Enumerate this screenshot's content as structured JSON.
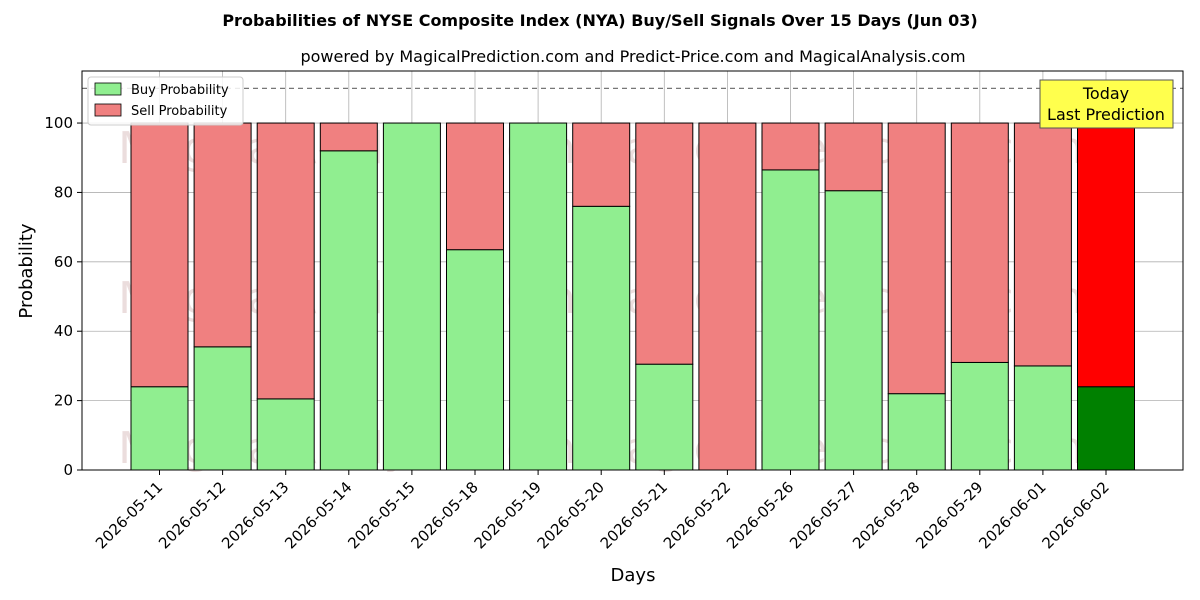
{
  "chart_data": {
    "type": "bar",
    "stacked": true,
    "title": "Probabilities of NYSE Composite Index (NYA) Buy/Sell Signals Over 15 Days (Jun 03)",
    "subtitle": "powered by MagicalPrediction.com and Predict-Price.com and MagicalAnalysis.com",
    "xlabel": "Days",
    "ylabel": "Probability",
    "ylim": [
      0,
      115
    ],
    "yticks": [
      0,
      20,
      40,
      60,
      80,
      100
    ],
    "reference_line": 110,
    "grid": true,
    "legend_position": "top-left",
    "categories": [
      "2026-05-11",
      "2026-05-12",
      "2026-05-13",
      "2026-05-14",
      "2026-05-15",
      "2026-05-18",
      "2026-05-19",
      "2026-05-20",
      "2026-05-21",
      "2026-05-22",
      "2026-05-26",
      "2026-05-27",
      "2026-05-28",
      "2026-05-29",
      "2026-06-01",
      "2026-06-02"
    ],
    "series": [
      {
        "name": "Buy Probability",
        "color": "#90ee90",
        "highlight_color": "#008000",
        "values": [
          24,
          35.5,
          20.5,
          92,
          100,
          63.5,
          100,
          76,
          30.5,
          0,
          86.5,
          80.5,
          22,
          31,
          30,
          24
        ]
      },
      {
        "name": "Sell Probability",
        "color": "#f08080",
        "highlight_color": "#ff0000",
        "values": [
          76,
          64.5,
          79.5,
          8,
          0,
          36.5,
          0,
          24,
          69.5,
          100,
          13.5,
          19.5,
          78,
          69,
          70,
          76
        ]
      }
    ],
    "highlight_index": 15,
    "annotation": {
      "lines": [
        "Today",
        "Last Prediction"
      ],
      "background": "#ffff4d"
    },
    "watermarks": [
      "MagicalAnalysis.com",
      "MagicalPrediction.com"
    ]
  }
}
